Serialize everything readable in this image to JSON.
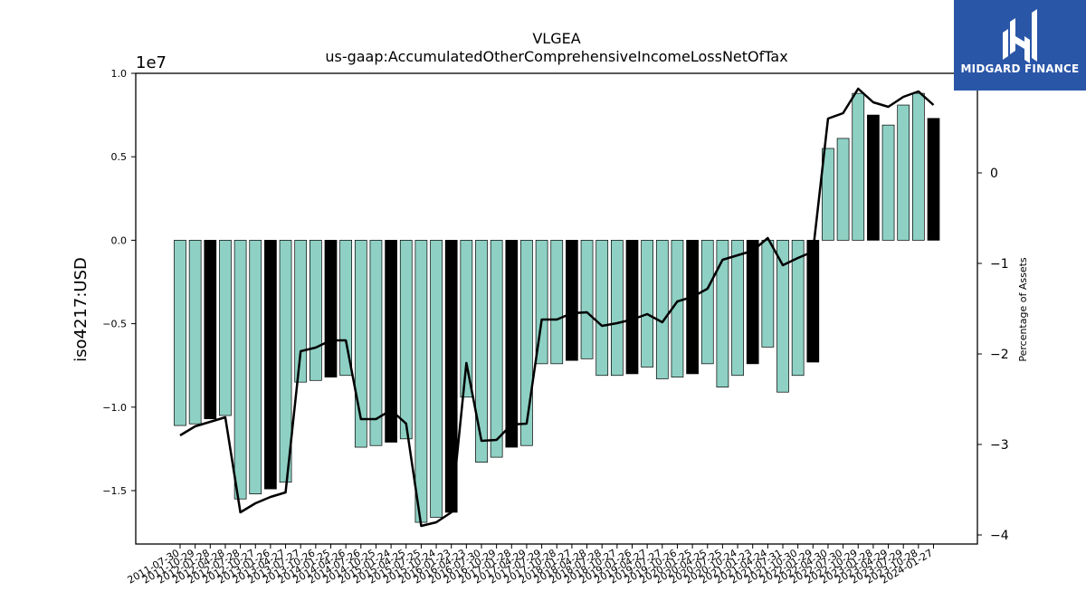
{
  "logo": {
    "text": "MIDGARD FINANCE",
    "bg_color": "#2a56a8"
  },
  "chart_data": {
    "type": "bar",
    "title": "VLGEA",
    "subtitle": "us-gaap:AccumulatedOtherComprehensiveIncomeLossNetOfTax",
    "ylabel": "iso4217:USD",
    "y_offset_text": "1e7",
    "y2label": "Percentage of Assets",
    "ylim": [
      -18200000,
      10000000
    ],
    "y2lim": [
      -4.1,
      1.1
    ],
    "yticks": [
      {
        "value": 10000000,
        "label": "1.0"
      },
      {
        "value": 5000000,
        "label": "0.5"
      },
      {
        "value": 0,
        "label": "0.0"
      },
      {
        "value": -5000000,
        "label": "−0.5"
      },
      {
        "value": -10000000,
        "label": "−1.0"
      },
      {
        "value": -15000000,
        "label": "−1.5"
      }
    ],
    "y2ticks": [
      {
        "value": 1,
        "label": "1"
      },
      {
        "value": 0,
        "label": "0"
      },
      {
        "value": -1,
        "label": "−1"
      },
      {
        "value": -2,
        "label": "−2"
      },
      {
        "value": -3,
        "label": "−3"
      },
      {
        "value": -4,
        "label": "−4"
      }
    ],
    "colors": {
      "quarter": "#8ed1c4",
      "fiscal_year": "#000000",
      "line": "#000000"
    },
    "categories": [
      "2011-07-30",
      "2011-10-29",
      "2012-01-28",
      "2012-04-28",
      "2012-07-28",
      "2012-10-27",
      "2013-01-26",
      "2013-04-27",
      "2013-07-27",
      "2013-10-26",
      "2014-01-25",
      "2014-04-26",
      "2014-07-26",
      "2014-10-25",
      "2015-01-24",
      "2015-04-25",
      "2015-07-25",
      "2015-10-24",
      "2016-01-23",
      "2016-04-23",
      "2016-07-30",
      "2016-10-29",
      "2017-01-28",
      "2017-04-29",
      "2017-07-29",
      "2017-10-28",
      "2018-01-27",
      "2018-04-28",
      "2018-07-28",
      "2018-10-27",
      "2019-01-26",
      "2019-04-27",
      "2019-07-27",
      "2019-10-26",
      "2020-01-25",
      "2020-04-25",
      "2020-07-25",
      "2020-10-24",
      "2021-01-23",
      "2021-04-24",
      "2021-07-31",
      "2021-10-30",
      "2022-01-29",
      "2022-04-30",
      "2022-07-30",
      "2022-10-29",
      "2023-01-28",
      "2023-04-29",
      "2023-07-29",
      "2023-10-28",
      "2024-01-27"
    ],
    "values": [
      -11100000,
      -11000000,
      -10700000,
      -10500000,
      -15500000,
      -15200000,
      -14900000,
      -14500000,
      -8500000,
      -8400000,
      -8200000,
      -8100000,
      -12400000,
      -12300000,
      -12100000,
      -11900000,
      -16900000,
      -16600000,
      -16300000,
      -9400000,
      -13300000,
      -13000000,
      -12400000,
      -12300000,
      -7400000,
      -7400000,
      -7200000,
      -7100000,
      -8100000,
      -8100000,
      -8000000,
      -7600000,
      -8300000,
      -8200000,
      -8000000,
      -7400000,
      -8800000,
      -8100000,
      -7400000,
      -6400000,
      -9100000,
      -8100000,
      -7300000,
      5500000,
      6100000,
      8800000,
      7500000,
      6900000,
      8100000,
      8800000,
      7300000
    ],
    "fiscal_year_end": [
      false,
      false,
      true,
      false,
      false,
      false,
      true,
      false,
      false,
      false,
      true,
      false,
      false,
      false,
      true,
      false,
      false,
      false,
      true,
      false,
      false,
      false,
      true,
      false,
      false,
      false,
      true,
      false,
      false,
      false,
      true,
      false,
      false,
      false,
      true,
      false,
      false,
      false,
      true,
      false,
      false,
      false,
      true,
      false,
      false,
      false,
      true,
      false,
      false,
      false,
      true
    ],
    "line_series": {
      "name": "Percentage of Assets",
      "values": [
        -2.9,
        -2.8,
        -2.75,
        -2.7,
        -3.75,
        -3.65,
        -3.58,
        -3.53,
        -1.97,
        -1.93,
        -1.85,
        -1.85,
        -2.72,
        -2.72,
        -2.62,
        -2.77,
        -3.9,
        -3.86,
        -3.75,
        -2.1,
        -2.96,
        -2.95,
        -2.78,
        -2.77,
        -1.62,
        -1.62,
        -1.55,
        -1.54,
        -1.69,
        -1.66,
        -1.62,
        -1.56,
        -1.65,
        -1.42,
        -1.37,
        -1.28,
        -0.96,
        -0.91,
        -0.86,
        -0.72,
        -1.02,
        -0.94,
        -0.87,
        0.6,
        0.66,
        0.93,
        0.78,
        0.73,
        0.84,
        0.9,
        0.75
      ]
    }
  }
}
